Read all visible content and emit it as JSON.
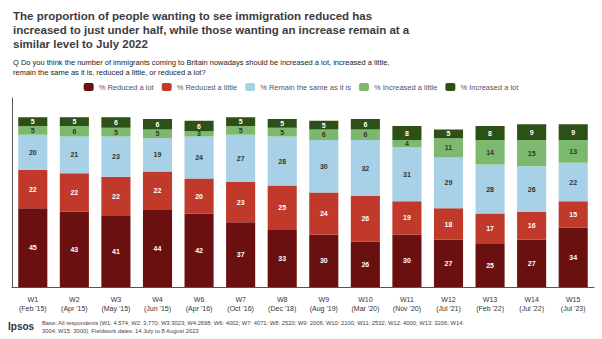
{
  "chart_data": {
    "type": "bar",
    "stacked": true,
    "title": "The proportion of people wanting to see immigration reduced has\nincreased to just under half, while those wanting an increase remain at a\nsimilar level to July 2022",
    "subtitle": "Q Do you think the number of immigrants coming to Britain nowadays should be increased a lot, increased a little,\nremain the same as it is, reduced a little, or reduced a lot?",
    "annotations": [
      "Ipsos",
      "Base: All respondents (W1: 4,574; W2: 3,770; W3:3023; W4:2698; W6: 4002; W7: 4071; W8: 2520; W9: 2006; W10: 2100; W11: 2532; W12: 4000; W13: 3206; W14:\n3004, W15: 3000)  Fieldwork dates: 14 July to 8 August 2023"
    ],
    "categories": [
      "W1\n(Feb '15)",
      "W2\n(Apr '15)",
      "W3\n(May '15)",
      "W4\n(Jun '15)",
      "W6\n(Apr '16)",
      "W7\n(Oct '16)",
      "W8\n(Dec '18)",
      "W9\n(Aug '19)",
      "W10\n(Mar '20)",
      "W11\n(Nov '20)",
      "W12\n(Jul '21)",
      "W13\n(Feb '22)",
      "W14\n(Jul '22)",
      "W15\n(Jul '23)"
    ],
    "series": [
      {
        "name": "% Reduced a lot",
        "color": "#6B1010",
        "values": [
          45,
          43,
          41,
          44,
          42,
          37,
          33,
          30,
          26,
          30,
          27,
          25,
          27,
          34
        ]
      },
      {
        "name": "% Reduced a little",
        "color": "#C0392B",
        "values": [
          22,
          22,
          22,
          22,
          20,
          23,
          25,
          24,
          26,
          19,
          18,
          17,
          16,
          15
        ]
      },
      {
        "name": "% Remain the same as it is",
        "color": "#A8D0E6",
        "values": [
          20,
          21,
          23,
          19,
          24,
          27,
          28,
          30,
          32,
          31,
          29,
          28,
          26,
          22
        ]
      },
      {
        "name": "% Increased a little",
        "color": "#7CB96E",
        "values": [
          5,
          6,
          5,
          5,
          3,
          5,
          5,
          6,
          6,
          4,
          11,
          14,
          15,
          13
        ]
      },
      {
        "name": "% Increased a lot",
        "color": "#2D5016",
        "values": [
          5,
          5,
          6,
          6,
          6,
          5,
          5,
          5,
          6,
          8,
          5,
          8,
          9,
          9
        ]
      }
    ],
    "ylim": [
      0,
      108
    ],
    "data_labels": true,
    "tick_labels": "x",
    "grid": false,
    "legend": "top"
  }
}
